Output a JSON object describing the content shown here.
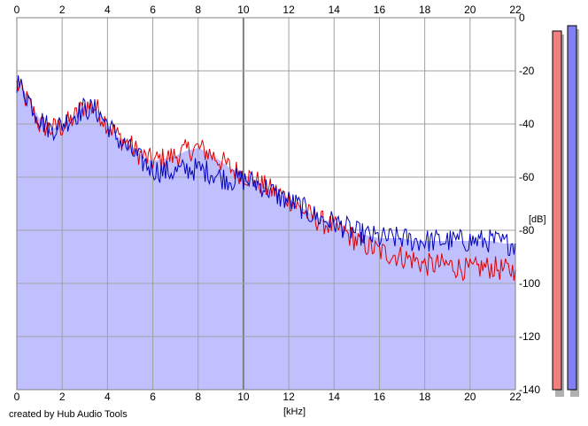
{
  "app": {
    "credit": "created by Hub Audio Tools"
  },
  "colors": {
    "background": "#ffffff",
    "spectrum_fill": "#c0c0ff",
    "grid": "#a0a0a0",
    "grid_major": "#808080",
    "channel_left": "#e00000",
    "channel_right": "#0000c0",
    "meter_left_fill": "#f08080",
    "meter_right_fill": "#8080f0",
    "meter_shadow": "#b0b0b0"
  },
  "chart_data": {
    "type": "line",
    "title": "",
    "xlabel": "[kHz]",
    "ylabel": "[dB]",
    "xlim": [
      0,
      22
    ],
    "ylim": [
      -140,
      0
    ],
    "x_ticks": [
      "0",
      "2",
      "4",
      "6",
      "8",
      "10",
      "12",
      "14",
      "16",
      "18",
      "20",
      "22"
    ],
    "y_ticks": [
      "0",
      "-20",
      "-40",
      "-60",
      "-80",
      "-100",
      "-120",
      "-140"
    ],
    "grid": true,
    "x": [
      0,
      0.5,
      1,
      1.5,
      2,
      2.5,
      3,
      3.5,
      4,
      4.5,
      5,
      5.5,
      6,
      6.5,
      7,
      7.5,
      8,
      8.5,
      9,
      9.5,
      10,
      10.5,
      11,
      11.5,
      12,
      12.5,
      13,
      13.5,
      14,
      14.5,
      15,
      15.5,
      16,
      16.5,
      17,
      17.5,
      18,
      18.5,
      19,
      19.5,
      20,
      20.5,
      21,
      21.5,
      22
    ],
    "series": [
      {
        "color": "#e00000",
        "values": [
          -25,
          -32,
          -40,
          -42,
          -41,
          -38,
          -33,
          -34,
          -40,
          -45,
          -48,
          -52,
          -54,
          -53,
          -52,
          -50,
          -49,
          -51,
          -54,
          -57,
          -59,
          -61,
          -64,
          -66,
          -68,
          -72,
          -75,
          -77,
          -79,
          -81,
          -84,
          -86,
          -88,
          -89,
          -90,
          -91,
          -93,
          -93,
          -93,
          -94,
          -95,
          -94,
          -94,
          -95,
          -95
        ]
      },
      {
        "color": "#0000c0",
        "values": [
          -24,
          -30,
          -38,
          -42,
          -40,
          -37,
          -34,
          -35,
          -40,
          -46,
          -50,
          -54,
          -57,
          -58,
          -58,
          -57,
          -57,
          -58,
          -60,
          -61,
          -61,
          -62,
          -64,
          -67,
          -69,
          -71,
          -74,
          -76,
          -77,
          -79,
          -81,
          -82,
          -83,
          -83,
          -83,
          -84,
          -84,
          -84,
          -84,
          -84,
          -84,
          -84,
          -84,
          -85,
          -85
        ]
      }
    ],
    "meters": {
      "left_db": -5,
      "right_db": -3
    }
  }
}
